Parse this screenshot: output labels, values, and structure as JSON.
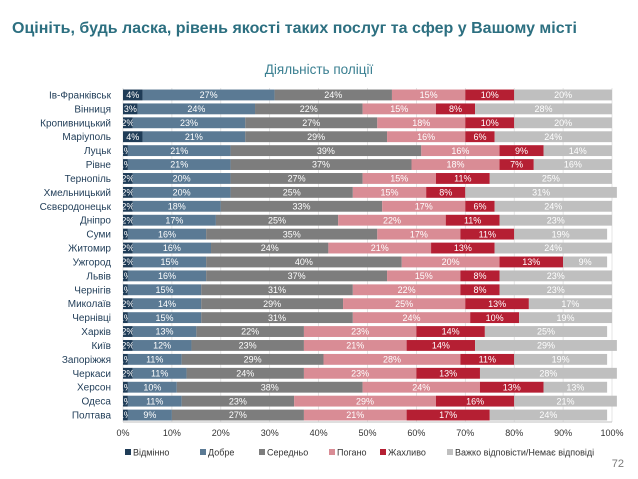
{
  "page": {
    "title": "Оцініть, будь ласка, рівень якості таких послуг та сфер у Вашому місті",
    "page_number": "72"
  },
  "colors": {
    "excellent": "#1f3c57",
    "good": "#5b7a94",
    "average": "#7d7d7d",
    "bad": "#d98c95",
    "very_bad": "#b51f33",
    "hard_to_say": "#bfbfbf"
  },
  "chart_data": {
    "type": "bar",
    "orientation": "horizontal",
    "stacked": true,
    "title": "Діяльність поліції",
    "categories": [
      "Ів-Франківськ",
      "Вінниця",
      "Кропивницький",
      "Маріуполь",
      "Луцьк",
      "Рівне",
      "Тернопіль",
      "Хмельницький",
      "Сєвєродонецьк",
      "Дніпро",
      "Суми",
      "Житомир",
      "Ужгород",
      "Львів",
      "Чернігів",
      "Миколаїв",
      "Чернівці",
      "Харків",
      "Київ",
      "Запоріжжя",
      "Черкаси",
      "Херсон",
      "Одеса",
      "Полтава"
    ],
    "series": [
      {
        "name": "Відмінно",
        "values": [
          4,
          3,
          2,
          4,
          1,
          1,
          2,
          2,
          2,
          2,
          1,
          2,
          2,
          1,
          1,
          2,
          1,
          2,
          2,
          1,
          2,
          1,
          1,
          1
        ]
      },
      {
        "name": "Добре",
        "values": [
          27,
          24,
          23,
          21,
          21,
          21,
          20,
          20,
          18,
          17,
          16,
          16,
          15,
          16,
          15,
          14,
          15,
          13,
          12,
          11,
          11,
          10,
          11,
          9
        ]
      },
      {
        "name": "Середньо",
        "values": [
          24,
          22,
          27,
          29,
          39,
          37,
          27,
          25,
          33,
          25,
          35,
          24,
          40,
          37,
          31,
          29,
          31,
          22,
          23,
          29,
          24,
          38,
          23,
          27
        ]
      },
      {
        "name": "Погано",
        "values": [
          15,
          15,
          18,
          16,
          16,
          18,
          15,
          15,
          17,
          22,
          17,
          21,
          20,
          15,
          22,
          25,
          24,
          23,
          21,
          28,
          23,
          24,
          29,
          21
        ]
      },
      {
        "name": "Жахливо",
        "values": [
          10,
          8,
          10,
          6,
          9,
          7,
          11,
          8,
          6,
          11,
          11,
          13,
          13,
          8,
          8,
          13,
          10,
          14,
          14,
          11,
          13,
          13,
          16,
          17
        ]
      },
      {
        "name": "Важко відповісти/Немає відповіді",
        "values": [
          20,
          28,
          20,
          24,
          14,
          16,
          25,
          31,
          24,
          23,
          19,
          24,
          9,
          23,
          23,
          17,
          19,
          25,
          29,
          19,
          28,
          13,
          21,
          24
        ]
      }
    ],
    "xlim": [
      0,
      100
    ],
    "x_ticks": [
      "0%",
      "10%",
      "20%",
      "30%",
      "40%",
      "50%",
      "60%",
      "70%",
      "80%",
      "90%",
      "100%"
    ],
    "legend_position": "bottom",
    "grid": true
  }
}
